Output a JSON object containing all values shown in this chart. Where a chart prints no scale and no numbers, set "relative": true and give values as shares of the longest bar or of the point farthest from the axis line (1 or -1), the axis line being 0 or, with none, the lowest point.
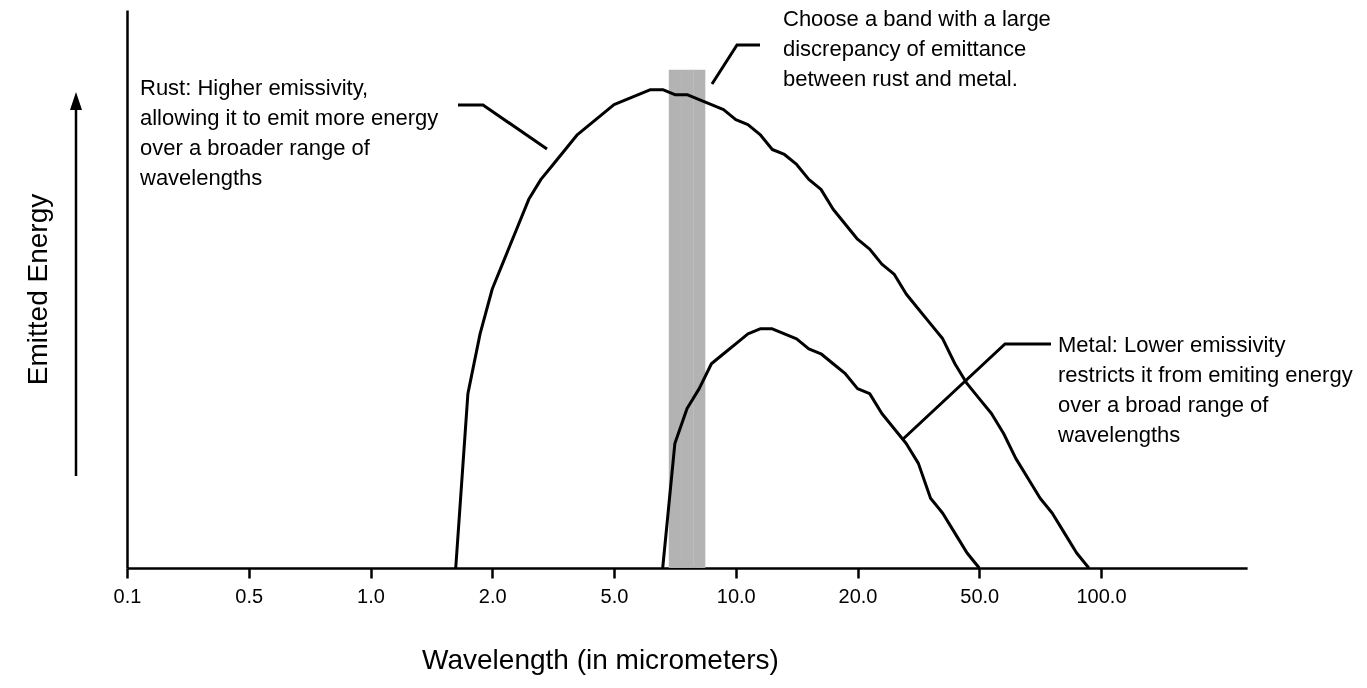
{
  "chart_data": {
    "type": "line",
    "xlabel": "Wavelength (in micrometers)",
    "ylabel": "Emitted Energy",
    "relative": true,
    "categories": [
      "0.1",
      null,
      null,
      null,
      null,
      null,
      null,
      null,
      null,
      null,
      "0.5",
      null,
      null,
      null,
      null,
      null,
      null,
      null,
      null,
      null,
      "1.0",
      null,
      null,
      null,
      null,
      null,
      null,
      null,
      null,
      null,
      "2.0",
      null,
      null,
      null,
      null,
      null,
      null,
      null,
      null,
      null,
      "5.0",
      null,
      null,
      null,
      null,
      null,
      null,
      null,
      null,
      null,
      "10.0",
      null,
      null,
      null,
      null,
      null,
      null,
      null,
      null,
      null,
      "20.0",
      null,
      null,
      null,
      null,
      null,
      null,
      null,
      null,
      null,
      "50.0",
      null,
      null,
      null,
      null,
      null,
      null,
      null,
      null,
      null,
      "100.0",
      null,
      null,
      null,
      null,
      null,
      null,
      null,
      null,
      null,
      null,
      null,
      null
    ],
    "series": [
      {
        "type": "bar",
        "color": "#b3b3b3",
        "values": [
          null,
          null,
          null,
          null,
          null,
          null,
          null,
          null,
          null,
          null,
          null,
          null,
          null,
          null,
          null,
          null,
          null,
          null,
          null,
          null,
          null,
          null,
          null,
          null,
          null,
          null,
          null,
          null,
          null,
          null,
          null,
          null,
          null,
          null,
          null,
          null,
          null,
          null,
          null,
          null,
          null,
          null,
          null,
          null,
          null,
          1,
          1,
          1,
          null,
          null,
          null,
          null,
          null,
          null,
          null,
          null,
          null,
          null,
          null,
          null,
          null,
          null,
          null,
          null,
          null,
          null,
          null,
          null,
          null,
          null,
          null,
          null,
          null,
          null,
          null,
          null,
          null,
          null,
          null,
          null,
          null,
          null,
          null,
          null,
          null,
          null,
          null,
          null,
          null,
          null,
          null,
          null,
          null
        ]
      },
      {
        "color": "#000000",
        "values": [
          null,
          null,
          null,
          null,
          null,
          null,
          null,
          null,
          null,
          null,
          null,
          null,
          null,
          null,
          null,
          null,
          null,
          null,
          null,
          null,
          null,
          null,
          null,
          null,
          null,
          null,
          null,
          0,
          0.35,
          0.47,
          0.56,
          0.62,
          0.68,
          0.74,
          0.78,
          0.81,
          0.84,
          0.87,
          0.89,
          0.91,
          0.93,
          0.94,
          0.95,
          0.96,
          0.96,
          0.95,
          0.95,
          0.94,
          0.93,
          0.92,
          0.9,
          0.89,
          0.87,
          0.84,
          0.83,
          0.81,
          0.78,
          0.76,
          0.72,
          0.69,
          0.66,
          0.64,
          0.61,
          0.59,
          0.55,
          0.52,
          0.49,
          0.46,
          0.41,
          0.37,
          0.34,
          0.31,
          0.27,
          0.22,
          0.18,
          0.14,
          0.11,
          0.07,
          0.03,
          0,
          null,
          null,
          null,
          null,
          null,
          null,
          null,
          null,
          null,
          null,
          null,
          null,
          null
        ]
      },
      {
        "color": "#000000",
        "values": [
          null,
          null,
          null,
          null,
          null,
          null,
          null,
          null,
          null,
          null,
          null,
          null,
          null,
          null,
          null,
          null,
          null,
          null,
          null,
          null,
          null,
          null,
          null,
          null,
          null,
          null,
          null,
          null,
          null,
          null,
          null,
          null,
          null,
          null,
          null,
          null,
          null,
          null,
          null,
          null,
          null,
          null,
          null,
          null,
          0,
          0.25,
          0.32,
          0.36,
          0.41,
          0.43,
          0.45,
          0.47,
          0.48,
          0.48,
          0.47,
          0.46,
          0.44,
          0.43,
          0.41,
          0.39,
          0.36,
          0.35,
          0.31,
          0.28,
          0.25,
          0.21,
          0.14,
          0.11,
          0.07,
          0.03,
          0,
          null,
          null,
          null,
          null,
          null,
          null,
          null,
          null,
          null,
          null,
          null,
          null,
          null,
          null,
          null,
          null,
          null,
          null,
          null,
          null,
          null,
          null
        ]
      }
    ],
    "annotations": [
      "Rust: Higher emissivity, allowing it to emit more energy over a broader range of wavelengths",
      "Choose a band with a large discrepancy of emittance between rust and metal.",
      "Metal: Lower emissivity restricts it from emiting energy over a broad range of wavelengths"
    ]
  }
}
